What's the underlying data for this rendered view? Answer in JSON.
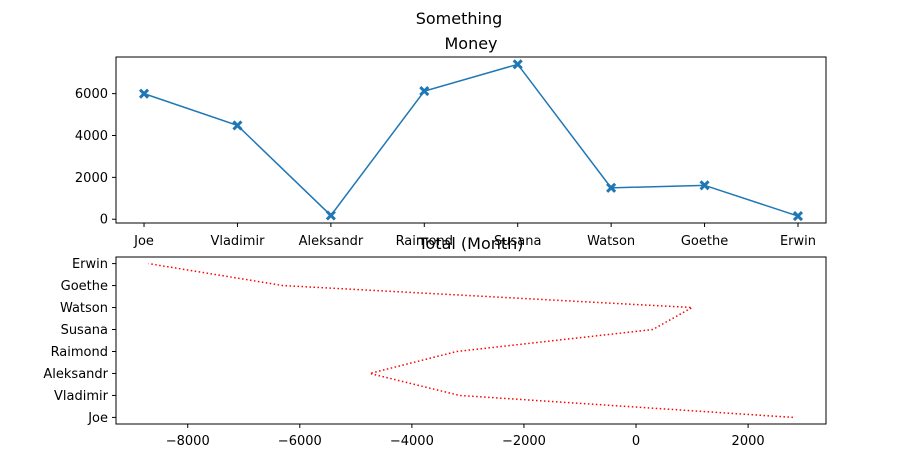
{
  "figure": {
    "suptitle": "Something"
  },
  "chart_data": [
    {
      "type": "line",
      "title": "Money",
      "xlabel": "",
      "ylabel": "",
      "categories": [
        "Joe",
        "Vladimir",
        "Aleksandr",
        "Raimond",
        "Susana",
        "Watson",
        "Goethe",
        "Erwin"
      ],
      "series": [
        {
          "values": [
            6000,
            4480,
            180,
            6120,
            7400,
            1500,
            1620,
            150
          ],
          "color": "#1f77b4",
          "marker": "X",
          "linestyle": "solid"
        }
      ],
      "ylim": [
        -180,
        7750
      ],
      "yticks": [
        0,
        2000,
        4000,
        6000
      ],
      "grid": false
    },
    {
      "type": "line",
      "title": "Total (Month)",
      "xlabel": "",
      "ylabel": "",
      "orientation": "horizontal",
      "categories": [
        "Joe",
        "Vladimir",
        "Aleksandr",
        "Raimond",
        "Susana",
        "Watson",
        "Goethe",
        "Erwin"
      ],
      "series": [
        {
          "values": [
            2800,
            -3150,
            -4750,
            -3200,
            300,
            1000,
            -6300,
            -8700
          ],
          "color": "#ff0000",
          "linestyle": "dotted"
        }
      ],
      "xlim": [
        -9280,
        3390
      ],
      "xticks": [
        -8000,
        -6000,
        -4000,
        -2000,
        0,
        2000
      ],
      "xtick_labels": [
        "−8000",
        "−6000",
        "−4000",
        "−2000",
        "0",
        "2000"
      ],
      "grid": false
    }
  ]
}
